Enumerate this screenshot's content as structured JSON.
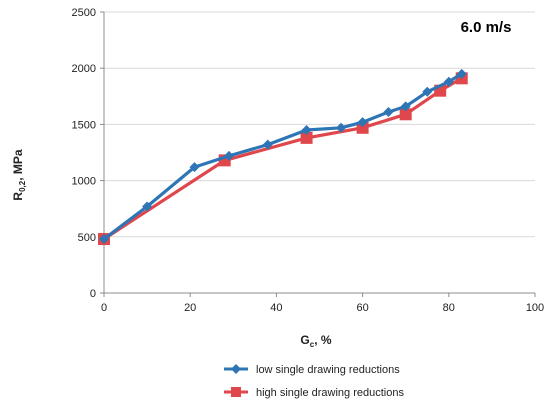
{
  "chart_data": {
    "type": "line",
    "annotation": "6.0 m/s",
    "xlabel": {
      "main": "G",
      "sub": "c",
      "suffix": ", %"
    },
    "ylabel": {
      "main": "R",
      "sub": "0,2",
      "suffix": ", MPa"
    },
    "xlim": [
      0,
      100
    ],
    "ylim": [
      0,
      2500
    ],
    "xticks": [
      0,
      20,
      40,
      60,
      80,
      100
    ],
    "yticks": [
      0,
      500,
      1000,
      1500,
      2000,
      2500
    ],
    "grid": "horizontal",
    "legend_position": "bottom",
    "series": [
      {
        "name": "low single drawing reductions",
        "color": "#2E75B6",
        "marker": "diamond",
        "x": [
          0,
          10,
          21,
          29,
          38,
          47,
          55,
          60,
          66,
          70,
          75,
          80,
          83
        ],
        "y": [
          480,
          770,
          1120,
          1220,
          1320,
          1450,
          1470,
          1520,
          1610,
          1660,
          1790,
          1880,
          1950
        ]
      },
      {
        "name": "high single drawing reductions",
        "color": "#E0474C",
        "marker": "square",
        "x": [
          0,
          28,
          47,
          60,
          70,
          78,
          83
        ],
        "y": [
          480,
          1180,
          1380,
          1470,
          1590,
          1800,
          1910
        ]
      }
    ]
  }
}
